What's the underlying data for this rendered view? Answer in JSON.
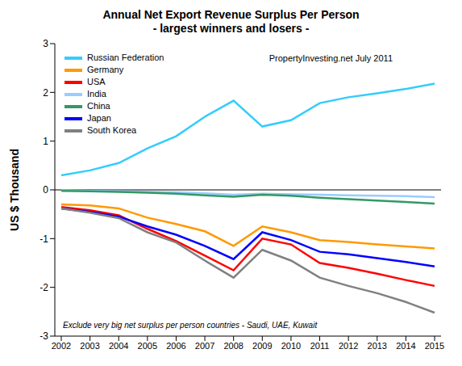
{
  "chart_data": {
    "type": "line",
    "title": "Annual Net Export Revenue Surplus Per Person",
    "subtitle": "- largest winners and losers -",
    "y_label": "US $ Thousand",
    "annotations": [
      "PropertyInvesting.net July 2011",
      "Exclude very big net surplus per person countries - Saudi, UAE, Kuwait"
    ],
    "categories": [
      "2002",
      "2003",
      "2004",
      "2005",
      "2006",
      "2007",
      "2008",
      "2009",
      "2010",
      "2011",
      "2012",
      "2013",
      "2014",
      "2015"
    ],
    "series": [
      {
        "name": "Russian Federation",
        "color": "#33ccff",
        "values": [
          0.3,
          0.4,
          0.55,
          0.85,
          1.1,
          1.5,
          1.83,
          1.3,
          1.43,
          1.78,
          1.9,
          1.98,
          2.07,
          2.18
        ]
      },
      {
        "name": "Germany",
        "color": "#ff9900",
        "values": [
          -0.3,
          -0.32,
          -0.38,
          -0.57,
          -0.7,
          -0.85,
          -1.15,
          -0.75,
          -0.87,
          -1.03,
          -1.07,
          -1.12,
          -1.16,
          -1.2
        ]
      },
      {
        "name": "USA",
        "color": "#ff0000",
        "values": [
          -0.35,
          -0.42,
          -0.52,
          -0.8,
          -1.05,
          -1.35,
          -1.65,
          -1.0,
          -1.12,
          -1.5,
          -1.6,
          -1.72,
          -1.85,
          -1.97
        ]
      },
      {
        "name": "India",
        "color": "#99ccff",
        "values": [
          -0.01,
          -0.02,
          -0.03,
          -0.04,
          -0.05,
          -0.07,
          -0.1,
          -0.08,
          -0.09,
          -0.1,
          -0.11,
          -0.12,
          -0.13,
          -0.15
        ]
      },
      {
        "name": "China",
        "color": "#339966",
        "values": [
          -0.02,
          -0.03,
          -0.04,
          -0.06,
          -0.08,
          -0.11,
          -0.14,
          -0.1,
          -0.12,
          -0.16,
          -0.19,
          -0.22,
          -0.25,
          -0.28
        ]
      },
      {
        "name": "Japan",
        "color": "#0000ff",
        "values": [
          -0.38,
          -0.45,
          -0.55,
          -0.75,
          -0.92,
          -1.15,
          -1.42,
          -0.87,
          -1.03,
          -1.27,
          -1.32,
          -1.4,
          -1.48,
          -1.57
        ]
      },
      {
        "name": "South Korea",
        "color": "#808080",
        "values": [
          -0.38,
          -0.47,
          -0.58,
          -0.87,
          -1.08,
          -1.45,
          -1.8,
          -1.23,
          -1.45,
          -1.8,
          -1.97,
          -2.12,
          -2.3,
          -2.52
        ]
      }
    ],
    "ylim": [
      -3,
      3
    ],
    "yticks": [
      -3,
      -2,
      -1,
      0,
      1,
      2,
      3
    ],
    "grid": false,
    "legend": "upper left",
    "marker": "none",
    "line_style": "solid"
  }
}
